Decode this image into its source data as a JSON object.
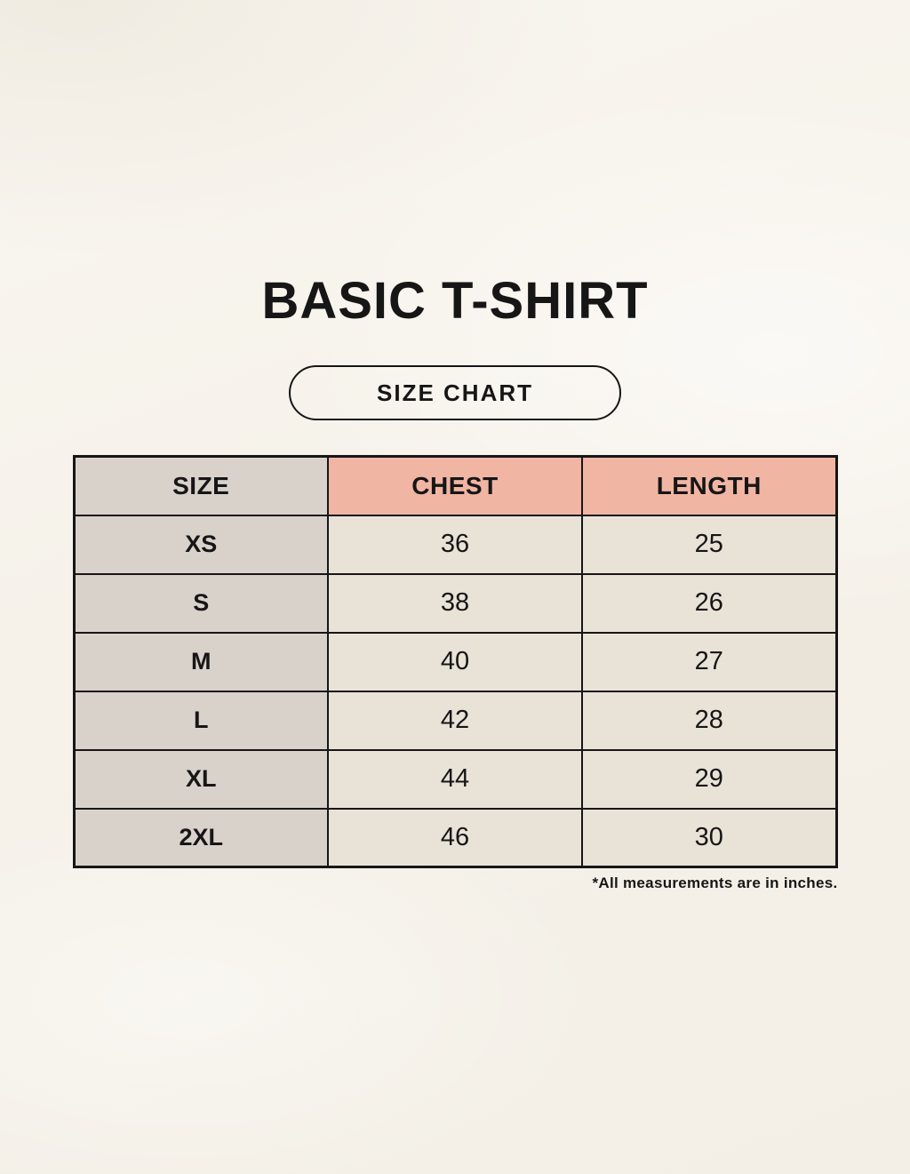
{
  "header": {
    "title": "BASIC T-SHIRT",
    "size_chart_label": "SIZE CHART"
  },
  "chart_data": {
    "type": "table",
    "title": "BASIC T-SHIRT",
    "subtitle": "SIZE CHART",
    "columns": [
      "SIZE",
      "CHEST",
      "LENGTH"
    ],
    "rows": [
      [
        "XS",
        "36",
        "25"
      ],
      [
        "S",
        "38",
        "26"
      ],
      [
        "M",
        "40",
        "27"
      ],
      [
        "L",
        "42",
        "28"
      ],
      [
        "XL",
        "44",
        "29"
      ],
      [
        "2XL",
        "46",
        "30"
      ]
    ],
    "footnote": "*All measurements are in inches."
  },
  "colors": {
    "bg": "#f6f2ea",
    "gray": "#d9d2cb",
    "pink": "#f1b5a3",
    "beige": "#e9e2d7",
    "border": "#161616",
    "text": "#161616"
  }
}
